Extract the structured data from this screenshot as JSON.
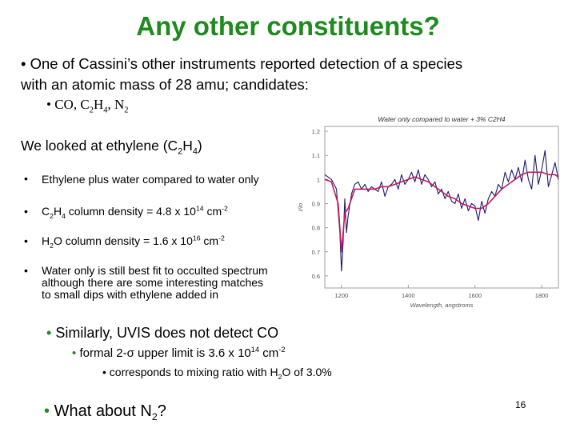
{
  "title": "Any other constituents?",
  "intro": {
    "bullet": "•",
    "line1": "One of Cassini’s other instruments reported detection of a species",
    "line2": "with an atomic mass of 28 amu; candidates:",
    "sub_bullet": "•",
    "candidates": {
      "co": "CO, C",
      "sub_2a": "2",
      "h": "H",
      "sub_4": "4",
      "n2": ", N",
      "sub_2b": "2"
    }
  },
  "ethylene": {
    "text": "We looked at ethylene (C",
    "sub_2": "2",
    "h": "H",
    "sub_4": "4",
    "close": ")"
  },
  "bullets": {
    "marker": "•",
    "b1": "Ethylene plus water compared to water only",
    "b2": {
      "a": "C",
      "s2": "2",
      "b": "H",
      "s4": "4",
      "c": " column density = 4.8 x 10",
      "exp": "14",
      "d": " cm",
      "exp2": "-2"
    },
    "b3": {
      "a": "H",
      "s2": "2",
      "b": "O column density = 1.6 x 10",
      "exp": "16",
      "d": " cm",
      "exp2": "-2"
    },
    "b4": [
      "Water only is still best fit to occulted spectrum",
      "although there are some interesting matches",
      "to small dips with ethylene added in"
    ]
  },
  "uvis": {
    "marker": "•",
    "line": "Similarly, UVIS does not detect CO",
    "sub": {
      "a": "formal 2-σ upper limit is 3.6 x 10",
      "exp": "14",
      "b": " cm",
      "exp2": "-2"
    },
    "subsub": {
      "a": "corresponds to mixing ratio with H",
      "s2": "2",
      "b": "O of 3.0%"
    }
  },
  "n2q": {
    "marker": "•",
    "a": "What about N",
    "s2": "2",
    "b": "?"
  },
  "page_number": "16",
  "chart_data": {
    "type": "line",
    "title": "Water only compared to water + 3% C2H4",
    "xlabel": "Wavelength, angstroms",
    "ylabel": "I/Io",
    "xlim": [
      1150,
      1850
    ],
    "ylim": [
      0.55,
      1.22
    ],
    "xticks": [
      "1200",
      "1400",
      "1600",
      "1800"
    ],
    "yticks": [
      "0.6",
      "0.7",
      "0.8",
      "0.9",
      "1",
      "1.1",
      "1.2"
    ],
    "series": [
      {
        "color": "#1a1a6e",
        "x": [
          1150,
          1170,
          1185,
          1195,
          1200,
          1205,
          1210,
          1215,
          1220,
          1230,
          1240,
          1250,
          1260,
          1270,
          1280,
          1290,
          1300,
          1310,
          1320,
          1330,
          1340,
          1350,
          1360,
          1370,
          1380,
          1390,
          1400,
          1410,
          1420,
          1430,
          1440,
          1450,
          1460,
          1470,
          1480,
          1490,
          1500,
          1510,
          1520,
          1530,
          1540,
          1550,
          1560,
          1570,
          1580,
          1590,
          1600,
          1610,
          1620,
          1630,
          1640,
          1650,
          1660,
          1670,
          1680,
          1690,
          1700,
          1710,
          1720,
          1730,
          1740,
          1750,
          1760,
          1770,
          1780,
          1790,
          1800,
          1810,
          1820,
          1830,
          1840,
          1850
        ],
        "y": [
          1.02,
          1.0,
          0.96,
          0.78,
          0.62,
          0.74,
          0.92,
          0.78,
          0.85,
          0.94,
          0.98,
          0.99,
          0.96,
          0.98,
          0.95,
          0.97,
          0.96,
          0.95,
          0.99,
          0.93,
          0.97,
          0.98,
          1.0,
          0.96,
          1.02,
          0.98,
          1.0,
          1.03,
          0.99,
          1.04,
          0.98,
          1.02,
          1.0,
          0.97,
          0.99,
          0.94,
          0.96,
          0.92,
          0.95,
          0.91,
          0.9,
          0.94,
          0.88,
          0.92,
          0.87,
          0.9,
          0.89,
          0.83,
          0.91,
          0.86,
          0.92,
          0.95,
          0.93,
          0.98,
          0.96,
          1.03,
          0.99,
          1.04,
          1.0,
          1.05,
          0.99,
          1.08,
          1.0,
          0.96,
          1.1,
          0.98,
          1.04,
          1.12,
          0.97,
          1.02,
          1.07,
          1.0
        ]
      },
      {
        "color": "#c2185b",
        "x": [
          1150,
          1170,
          1190,
          1200,
          1210,
          1220,
          1240,
          1260,
          1280,
          1300,
          1320,
          1340,
          1360,
          1380,
          1400,
          1420,
          1440,
          1460,
          1480,
          1500,
          1520,
          1540,
          1560,
          1580,
          1600,
          1620,
          1640,
          1660,
          1680,
          1700,
          1720,
          1740,
          1760,
          1780,
          1800,
          1820,
          1840,
          1850
        ],
        "y": [
          1.0,
          0.99,
          0.9,
          0.7,
          0.86,
          0.88,
          0.96,
          0.96,
          0.96,
          0.96,
          0.97,
          0.97,
          0.98,
          0.99,
          1.0,
          1.01,
          1.0,
          0.99,
          0.97,
          0.95,
          0.93,
          0.92,
          0.9,
          0.89,
          0.88,
          0.88,
          0.9,
          0.93,
          0.96,
          0.98,
          1.0,
          1.02,
          1.03,
          1.03,
          1.03,
          1.02,
          1.02,
          1.01
        ]
      }
    ],
    "grid": false,
    "legend": "none"
  }
}
